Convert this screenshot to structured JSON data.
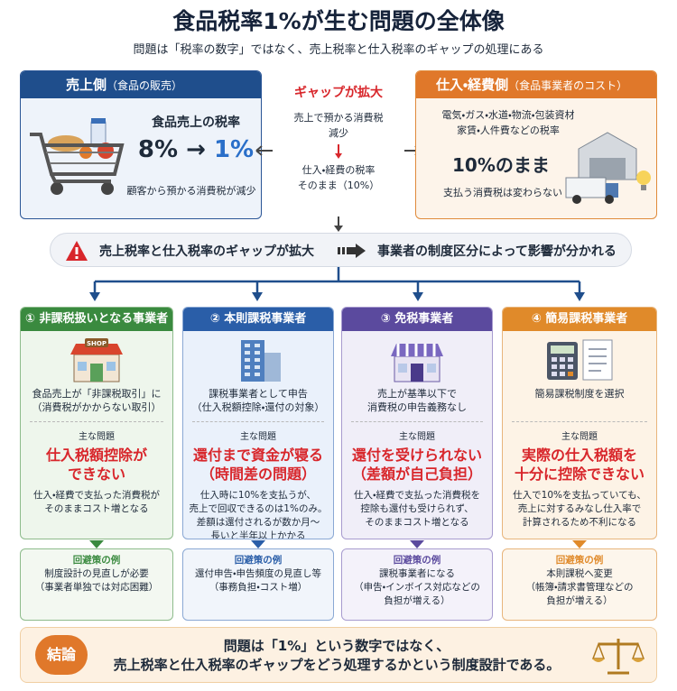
{
  "header": {
    "title": "食品税率1%が生む問題の全体像",
    "subtitle": "問題は「税率の数字」ではなく、売上税率と仕入税率のギャップの処理にある"
  },
  "sales_side": {
    "label": "売上側",
    "note": "（食品の販売）",
    "heading": "食品売上の税率",
    "rate_from": "8%",
    "rate_to": "1%",
    "caption": "顧客から預かる消費税が減少"
  },
  "gap": {
    "title": "ギャップが拡大",
    "lines_top": [
      "売上で預かる消費税",
      "減少"
    ],
    "lines_bottom": [
      "仕入・経費の税率",
      "そのまま（10%）"
    ]
  },
  "cost_side": {
    "label": "仕入・経費側",
    "note": "（食品事業者のコスト）",
    "lines": [
      "電気・ガス・水道・物流・包装資材",
      "家賃・人件費などの税率"
    ],
    "rate": "10%のまま",
    "caption": "支払う消費税は変わらない"
  },
  "banner": {
    "left": "売上税率と仕入税率のギャップが拡大",
    "right": "事業者の制度区分によって影響が分かれる"
  },
  "columns": [
    {
      "title": "① 非課税扱いとなる事業者",
      "icon_label": "SHOP",
      "description": [
        "食品売上が「非課税取引」に",
        "（消費税がかからない取引）"
      ],
      "problem_label": "主な問題",
      "problem": [
        "仕入税額控除が",
        "できない"
      ],
      "detail": [
        "仕入・経費で支払った消費税が",
        "そのままコスト増となる"
      ],
      "avoid_label": "回避策の例",
      "avoid": [
        "制度設計の見直しが必要",
        "（事業者単独では対応困難）"
      ]
    },
    {
      "title": "② 本則課税事業者",
      "description": [
        "課税事業者として申告",
        "（仕入税額控除・還付の対象）"
      ],
      "problem_label": "主な問題",
      "problem": [
        "還付まで資金が寝る",
        "（時間差の問題）"
      ],
      "detail": [
        "仕入時に10%を支払うが、",
        "売上で回収できるのは1%のみ。",
        "差額は還付されるが数か月～",
        "長いと半年以上かかる"
      ],
      "avoid_label": "回避策の例",
      "avoid": [
        "還付申告・申告頻度の見直し等",
        "（事務負担・コスト増）"
      ]
    },
    {
      "title": "③ 免税事業者",
      "description": [
        "売上が基準以下で",
        "消費税の申告義務なし"
      ],
      "problem_label": "主な問題",
      "problem": [
        "還付を受けられない",
        "（差額が自己負担）"
      ],
      "detail": [
        "仕入・経費で支払った消費税を",
        "控除も還付も受けられず、",
        "そのままコスト増となる"
      ],
      "avoid_label": "回避策の例",
      "avoid": [
        "課税事業者になる",
        "（申告・インボイス対応などの",
        "負担が増える）"
      ]
    },
    {
      "title": "④ 簡易課税事業者",
      "description": [
        "簡易課税制度を選択"
      ],
      "problem_label": "主な問題",
      "problem": [
        "実際の仕入税額を",
        "十分に控除できない"
      ],
      "detail": [
        "仕入で10%を支払っていても、",
        "売上に対するみなし仕入率で",
        "計算されるため不利になる"
      ],
      "avoid_label": "回避策の例",
      "avoid": [
        "本則課税へ変更",
        "（帳簿・請求書管理などの",
        "負担が増える）"
      ]
    }
  ],
  "conclusion": {
    "badge": "結論",
    "lines": [
      "問題は「1%」という数字ではなく、",
      "売上税率と仕入税率のギャップをどう処理するかという制度設計である。"
    ]
  }
}
